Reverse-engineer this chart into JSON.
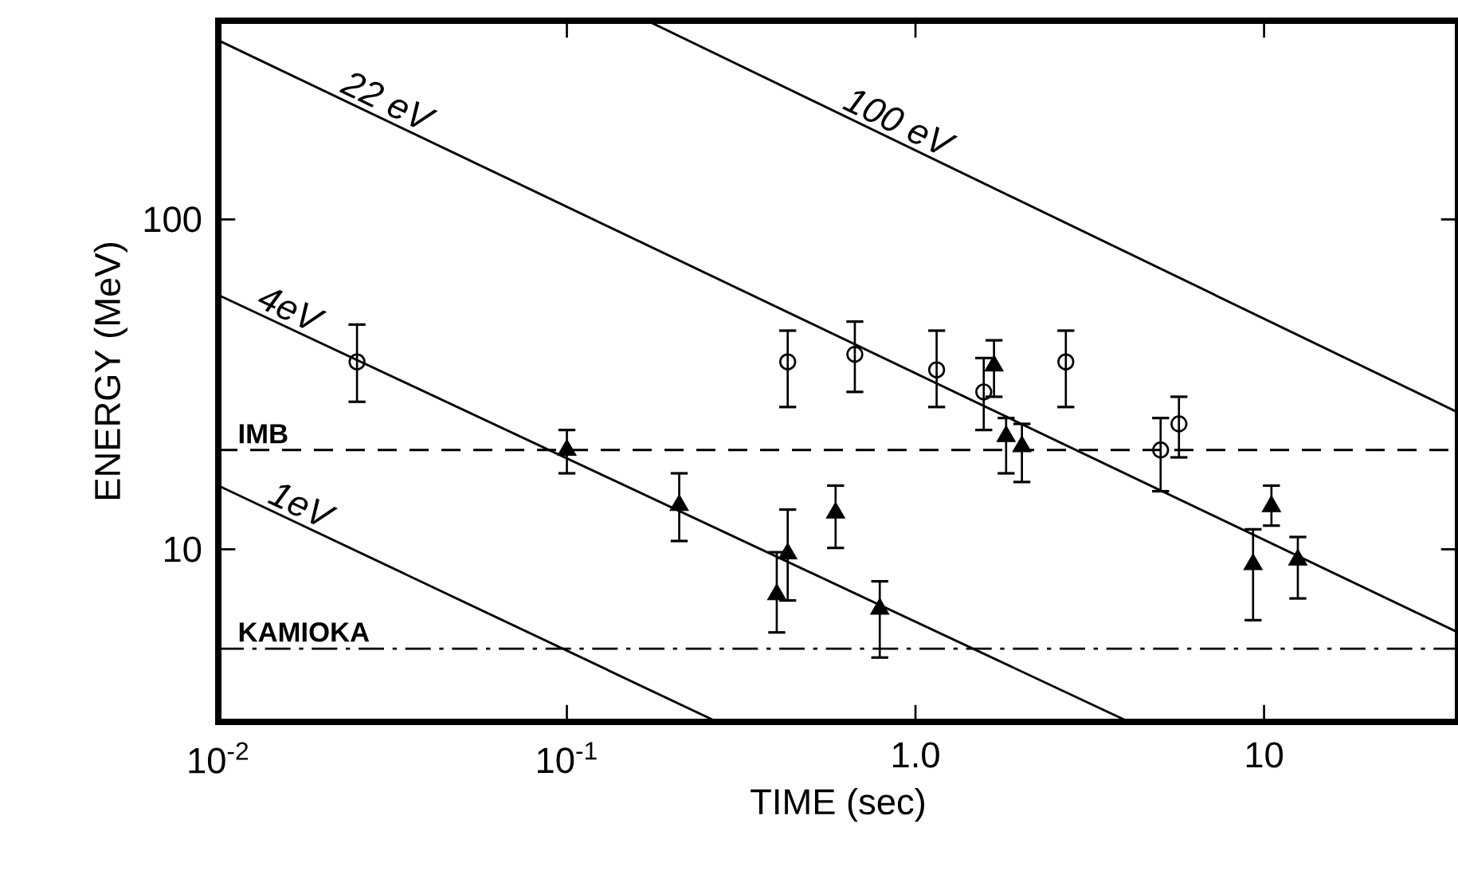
{
  "chart_data": {
    "type": "scatter",
    "xlabel": "TIME (sec)",
    "ylabel": "ENERGY (MeV)",
    "log": "xy",
    "xlim": [
      0.01,
      36
    ],
    "ylim": [
      3,
      400
    ],
    "xticks": [
      {
        "value": 0.01,
        "label": "10$^{-2}$"
      },
      {
        "value": 0.1,
        "label": "10$^{-1}$"
      },
      {
        "value": 1,
        "label": "1.0"
      },
      {
        "value": 10,
        "label": "10"
      }
    ],
    "yticks": [
      10,
      100
    ],
    "grid": false,
    "series": [
      {
        "marker": "circle",
        "color": "#000000",
        "x": [
          0.025,
          0.43,
          0.67,
          1.15,
          1.57,
          2.7,
          5.7,
          5.05
        ],
        "values": [
          37,
          37,
          39,
          35,
          30,
          37,
          24,
          20
        ],
        "errors": [
          [
            28,
            48
          ],
          [
            27,
            46
          ],
          [
            30,
            49
          ],
          [
            27,
            46
          ],
          [
            23,
            38
          ],
          [
            27,
            46
          ],
          [
            19,
            29
          ],
          [
            15,
            25
          ]
        ]
      },
      {
        "marker": "triangle",
        "color": "#000000",
        "x": [
          0.1,
          0.21,
          0.4,
          0.43,
          0.59,
          0.79,
          1.68,
          1.82,
          2.02,
          10.5,
          9.3,
          12.5
        ],
        "values": [
          20,
          13.6,
          7.3,
          9.7,
          12.9,
          6.6,
          36,
          22,
          20.5,
          13.5,
          9.0,
          9.3
        ],
        "errors": [
          [
            17,
            23
          ],
          [
            10.6,
            17
          ],
          [
            5.6,
            9.8
          ],
          [
            7.0,
            13.2
          ],
          [
            10.1,
            15.6
          ],
          [
            4.7,
            8.0
          ],
          [
            29,
            43
          ],
          [
            17,
            25
          ],
          [
            16,
            24
          ],
          [
            11.8,
            15.6
          ],
          [
            6.1,
            11.5
          ],
          [
            7.1,
            10.9
          ]
        ]
      },
      {
        "type": "line",
        "name": "22 eV",
        "color": "#000000",
        "x": [
          0.01,
          36
        ],
        "values": [
          349,
          5.6
        ]
      },
      {
        "type": "line",
        "name": "100 eV",
        "color": "#000000",
        "x": [
          0.17,
          36
        ],
        "values": [
          400,
          26
        ]
      },
      {
        "type": "line",
        "name": "4eV",
        "color": "#000000",
        "x": [
          0.01,
          4.1
        ],
        "values": [
          59,
          3
        ]
      },
      {
        "type": "line",
        "name": "1eV",
        "color": "#000000",
        "x": [
          0.01,
          0.27
        ],
        "values": [
          15.6,
          3
        ]
      }
    ],
    "ref_lines": [
      {
        "axis": "y",
        "value": 20,
        "label": "IMB",
        "line_style": "dashed",
        "color": "#000000"
      },
      {
        "axis": "y",
        "value": 5,
        "label": "KAMIOKA",
        "line_style": "dashdot",
        "color": "#000000"
      }
    ]
  }
}
